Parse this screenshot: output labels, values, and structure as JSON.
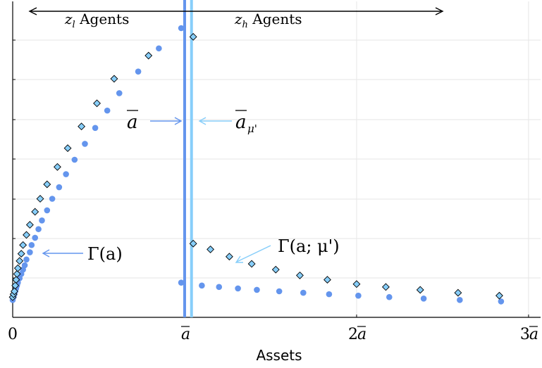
{
  "chart_data": {
    "type": "scatter",
    "xlabel": "Assets",
    "ylabel": "",
    "xlim": [
      0,
      3.07
    ],
    "xticks": [
      {
        "value": 0,
        "label": "0"
      },
      {
        "value": 1,
        "label": "a",
        "bar": true,
        "prefix": ""
      },
      {
        "value": 2,
        "label": "a",
        "bar": true,
        "prefix": "2"
      },
      {
        "value": 3,
        "label": "a",
        "bar": true,
        "prefix": "3"
      }
    ],
    "grid": true,
    "legend": "none",
    "vlines": [
      {
        "x": 1.0,
        "color": "#6495ED"
      },
      {
        "x": 1.04,
        "color": "#87CEFA"
      }
    ],
    "series": [
      {
        "marker": "circle",
        "color": "#6495ED",
        "points": [
          [
            0.0,
            0.06
          ],
          [
            0.005,
            0.07
          ],
          [
            0.01,
            0.08
          ],
          [
            0.015,
            0.09
          ],
          [
            0.02,
            0.1
          ],
          [
            0.025,
            0.11
          ],
          [
            0.03,
            0.12
          ],
          [
            0.04,
            0.135
          ],
          [
            0.05,
            0.15
          ],
          [
            0.06,
            0.165
          ],
          [
            0.07,
            0.18
          ],
          [
            0.08,
            0.2
          ],
          [
            0.1,
            0.225
          ],
          [
            0.11,
            0.25
          ],
          [
            0.13,
            0.275
          ],
          [
            0.15,
            0.305
          ],
          [
            0.17,
            0.335
          ],
          [
            0.2,
            0.37
          ],
          [
            0.23,
            0.41
          ],
          [
            0.27,
            0.45
          ],
          [
            0.31,
            0.495
          ],
          [
            0.36,
            0.545
          ],
          [
            0.42,
            0.6
          ],
          [
            0.48,
            0.655
          ],
          [
            0.55,
            0.715
          ],
          [
            0.62,
            0.775
          ],
          [
            0.73,
            0.85
          ],
          [
            0.85,
            0.93
          ],
          [
            0.98,
            1.0
          ],
          [
            0.98,
            0.12
          ],
          [
            1.1,
            0.11
          ],
          [
            1.2,
            0.105
          ],
          [
            1.31,
            0.1
          ],
          [
            1.42,
            0.095
          ],
          [
            1.55,
            0.09
          ],
          [
            1.69,
            0.085
          ],
          [
            1.84,
            0.08
          ],
          [
            2.01,
            0.075
          ],
          [
            2.19,
            0.07
          ],
          [
            2.39,
            0.065
          ],
          [
            2.6,
            0.06
          ],
          [
            2.84,
            0.055
          ]
        ]
      },
      {
        "marker": "diamond",
        "color": "#87CEFA",
        "points": [
          [
            0.0,
            0.07
          ],
          [
            0.005,
            0.08
          ],
          [
            0.01,
            0.09
          ],
          [
            0.015,
            0.11
          ],
          [
            0.02,
            0.13
          ],
          [
            0.025,
            0.15
          ],
          [
            0.03,
            0.17
          ],
          [
            0.04,
            0.195
          ],
          [
            0.05,
            0.22
          ],
          [
            0.06,
            0.25
          ],
          [
            0.08,
            0.285
          ],
          [
            0.1,
            0.32
          ],
          [
            0.13,
            0.365
          ],
          [
            0.16,
            0.41
          ],
          [
            0.2,
            0.46
          ],
          [
            0.26,
            0.52
          ],
          [
            0.32,
            0.585
          ],
          [
            0.4,
            0.66
          ],
          [
            0.49,
            0.74
          ],
          [
            0.59,
            0.825
          ],
          [
            0.79,
            0.905
          ],
          [
            1.05,
            0.97
          ],
          [
            1.05,
            0.255
          ],
          [
            1.15,
            0.235
          ],
          [
            1.26,
            0.21
          ],
          [
            1.39,
            0.185
          ],
          [
            1.53,
            0.165
          ],
          [
            1.67,
            0.145
          ],
          [
            1.83,
            0.13
          ],
          [
            2.0,
            0.115
          ],
          [
            2.17,
            0.105
          ],
          [
            2.37,
            0.095
          ],
          [
            2.59,
            0.085
          ],
          [
            2.83,
            0.075
          ]
        ]
      }
    ],
    "annotations": {
      "zl_agents": {
        "sub": "l",
        "text": " Agents"
      },
      "zh_agents": {
        "sub": "h",
        "text": " Agents"
      },
      "abar_label": "a",
      "abar_mu_label": "a",
      "abar_mu_sub": "μ'",
      "gamma_label": "Γ(a)",
      "gamma_mu_label": "Γ(a; μ')",
      "z_letter": "z"
    },
    "colors": {
      "circle": "#6495ED",
      "diamond": "#87CEFA",
      "vline_abar": "#6495ED",
      "vline_mu": "#87CEFA",
      "arrow_black": "#000000",
      "grid": "#e6e6e6"
    }
  }
}
